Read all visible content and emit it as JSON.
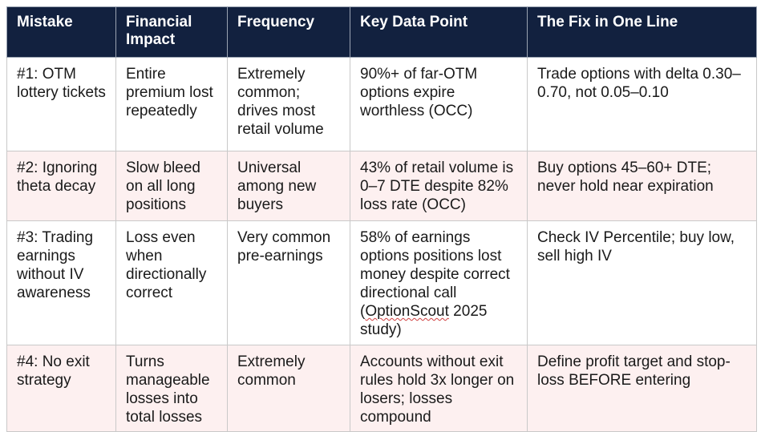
{
  "table": {
    "headers": {
      "mistake": "Mistake",
      "impact": "Financial Impact",
      "frequency": "Frequency",
      "datapoint": "Key Data Point",
      "fix": "The Fix in One Line"
    },
    "rows": [
      {
        "mistake": "#1: OTM lottery tickets",
        "impact": "Entire premium lost repeatedly",
        "frequency": "Extremely common; drives most retail volume",
        "datapoint": "90%+ of far-OTM options expire worthless (OCC)",
        "fix": "Trade options with delta 0.30–0.70, not 0.05–0.10"
      },
      {
        "mistake": "#2: Ignoring theta decay",
        "impact": "Slow bleed on all long positions",
        "frequency": "Universal among new buyers",
        "datapoint": "43% of retail volume is 0–7 DTE despite 82% loss rate (OCC)",
        "fix": "Buy options 45–60+ DTE; never hold near expiration"
      },
      {
        "mistake": "#3: Trading earnings without IV awareness",
        "impact": "Loss even when directionally correct",
        "frequency": "Very common pre-earnings",
        "datapoint_before": "58% of earnings options positions lost money despite correct directional call (",
        "datapoint_flagged": "OptionScout",
        "datapoint_after": " 2025 study)",
        "fix": "Check IV Percentile; buy low, sell high IV"
      },
      {
        "mistake": "#4: No exit strategy",
        "impact": "Turns manageable losses into total losses",
        "frequency": "Extremely common",
        "datapoint": "Accounts without exit rules hold 3x longer on losers; losses compound",
        "fix": "Define profit target and stop-loss BEFORE entering"
      }
    ]
  },
  "colors": {
    "header_bg": "#12213f",
    "header_text": "#ffffff",
    "alt_row_bg": "#fdf0f0",
    "spellcheck_underline": "#d04040"
  }
}
